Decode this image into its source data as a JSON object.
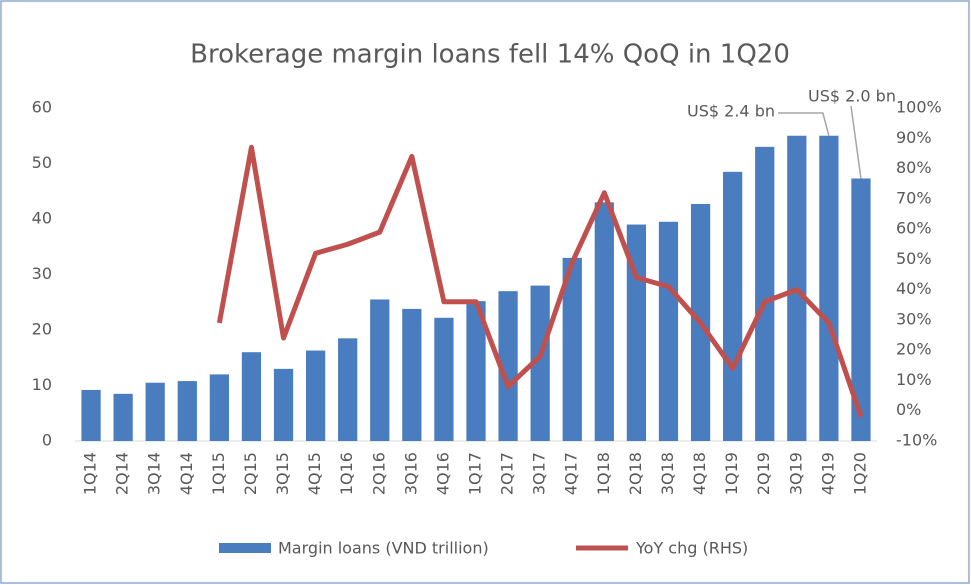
{
  "chart_data": {
    "type": "bar_line",
    "title": "Brokerage margin loans fell 14% QoQ in 1Q20",
    "categories": [
      "1Q14",
      "2Q14",
      "3Q14",
      "4Q14",
      "1Q15",
      "2Q15",
      "3Q15",
      "4Q15",
      "1Q16",
      "2Q16",
      "3Q16",
      "4Q16",
      "1Q17",
      "2Q17",
      "3Q17",
      "4Q17",
      "1Q18",
      "2Q18",
      "3Q18",
      "4Q18",
      "1Q19",
      "2Q19",
      "3Q19",
      "4Q19",
      "1Q20"
    ],
    "series": [
      {
        "name": "Margin loans (VND trillion)",
        "color": "#4a7dbf",
        "type": "bar",
        "values": [
          9.2,
          8.5,
          10.5,
          10.8,
          12,
          16,
          13,
          16.3,
          18.5,
          25.5,
          23.8,
          22.2,
          25.2,
          27,
          28,
          33,
          43,
          39,
          39.5,
          42.7,
          48.5,
          53,
          55,
          55,
          47.3
        ]
      },
      {
        "name": "YoY chg (RHS)",
        "color": "#c0504d",
        "type": "line",
        "axis": "y2",
        "values": [
          null,
          null,
          null,
          null,
          29,
          87,
          24,
          52,
          55,
          59,
          84,
          36,
          36,
          8,
          18,
          49,
          72,
          44,
          41,
          29,
          14,
          36,
          40,
          29,
          -2
        ]
      }
    ],
    "ylim": [
      0,
      60
    ],
    "yticks": [
      0,
      10,
      20,
      30,
      40,
      50,
      60
    ],
    "y2lim": [
      -10,
      100
    ],
    "y2ticks": [
      {
        "value": -10,
        "label": "-10%"
      },
      {
        "value": 0,
        "label": "0%"
      },
      {
        "value": 10,
        "label": "10%"
      },
      {
        "value": 20,
        "label": "20%"
      },
      {
        "value": 30,
        "label": "30%"
      },
      {
        "value": 40,
        "label": "40%"
      },
      {
        "value": 50,
        "label": "50%"
      },
      {
        "value": 60,
        "label": "60%"
      },
      {
        "value": 70,
        "label": "70%"
      },
      {
        "value": 80,
        "label": "80%"
      },
      {
        "value": 90,
        "label": "90%"
      },
      {
        "value": 100,
        "label": "100%"
      }
    ],
    "annotations": [
      "US$ 2.4 bn",
      "US$ 2.0 bn"
    ]
  }
}
